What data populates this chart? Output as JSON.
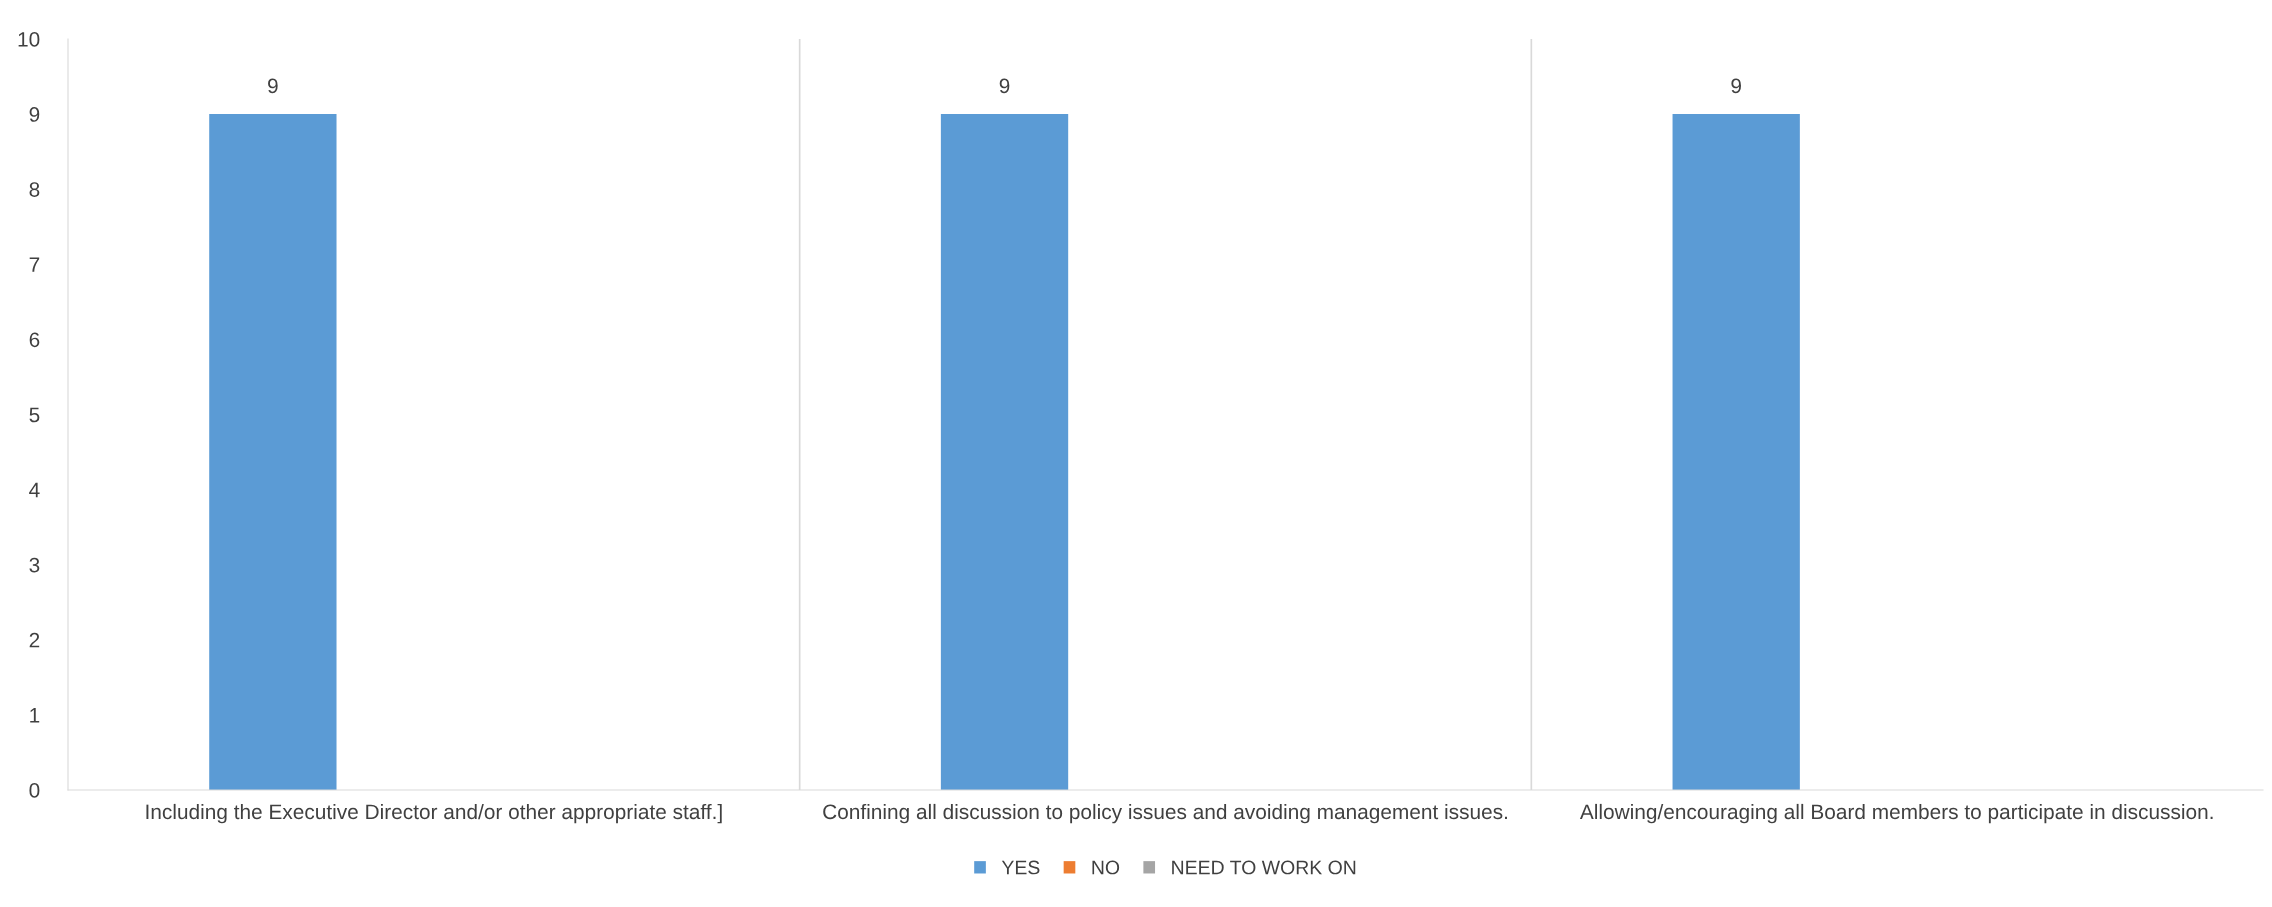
{
  "chart_data": {
    "type": "bar",
    "categories": [
      "Including the Executive Director and/or other appropriate staff.]",
      "Confining all discussion to policy issues and avoiding management issues.",
      "Allowing/encouraging all Board members to participate in discussion."
    ],
    "series": [
      {
        "name": "YES",
        "color": "#5b9bd5",
        "values": [
          9,
          9,
          9
        ]
      },
      {
        "name": "NO",
        "color": "#ed7d31",
        "values": [
          null,
          null,
          null
        ]
      },
      {
        "name": "NEED TO WORK ON",
        "color": "#a5a5a5",
        "values": [
          null,
          null,
          null
        ]
      }
    ],
    "ylim": [
      0,
      10
    ],
    "yticks": [
      0,
      1,
      2,
      3,
      4,
      5,
      6,
      7,
      8,
      9,
      10
    ],
    "grid": "x",
    "legend": "bottom",
    "data_labels": true
  }
}
